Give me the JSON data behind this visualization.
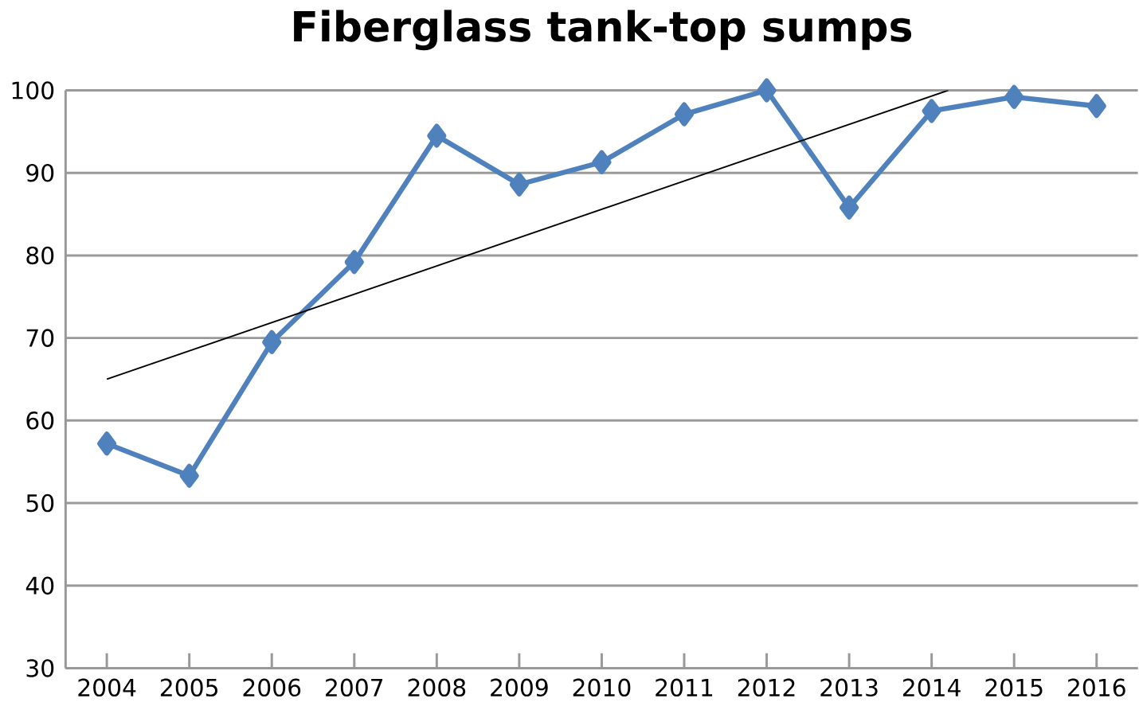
{
  "chart_data": {
    "type": "line",
    "title": "Fiberglass tank-top sumps",
    "x": [
      2004,
      2005,
      2006,
      2007,
      2008,
      2009,
      2010,
      2011,
      2012,
      2013,
      2014,
      2015,
      2016
    ],
    "series": [
      {
        "color": "#4f81bd",
        "marker": "diamond",
        "values": [
          57.2,
          53.3,
          69.5,
          79.2,
          94.5,
          88.6,
          91.3,
          97.1,
          100,
          85.8,
          97.5,
          99.2,
          98.1
        ]
      },
      {
        "color": "#000000",
        "marker": "none",
        "x": [
          2004,
          2014.2
        ],
        "values": [
          65,
          100
        ]
      }
    ],
    "xlim": [
      2003.5,
      2016.5
    ],
    "xticks": [
      2004,
      2005,
      2006,
      2007,
      2008,
      2009,
      2010,
      2011,
      2012,
      2013,
      2014,
      2015,
      2016
    ],
    "ylim": [
      30,
      100
    ],
    "yticks": [
      30,
      40,
      50,
      60,
      70,
      80,
      90,
      100
    ],
    "grid": "y"
  }
}
